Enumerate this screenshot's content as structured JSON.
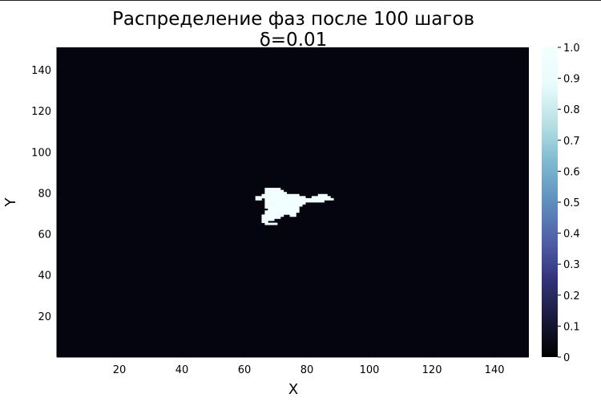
{
  "chart_data": {
    "type": "heatmap",
    "title": "Распределение фаз после 100 шагов",
    "subtitle": "δ=0.01",
    "xlabel": "X",
    "ylabel": "Y",
    "xlim": [
      0,
      151
    ],
    "ylim": [
      0,
      151
    ],
    "xticks": [
      20,
      40,
      60,
      80,
      100,
      120,
      140
    ],
    "yticks": [
      20,
      40,
      60,
      80,
      100,
      120,
      140
    ],
    "zlim": [
      0,
      1
    ],
    "zticks": [
      "0",
      "0.1",
      "0.2",
      "0.3",
      "0.4",
      "0.5",
      "0.6",
      "0.7",
      "0.8",
      "0.9",
      "1.0"
    ],
    "colormap": [
      "#000000",
      "#1a1a3b",
      "#33337a",
      "#4e5fa8",
      "#5e8fbd",
      "#7cb8cf",
      "#b6dfe3",
      "#e8fbfb",
      "#f2ffff"
    ],
    "background_value": 0,
    "grid": false,
    "cluster_value": 1,
    "cluster_cells": [
      [
        67,
        82
      ],
      [
        68,
        82
      ],
      [
        69,
        82
      ],
      [
        70,
        82
      ],
      [
        71,
        82
      ],
      [
        67,
        81
      ],
      [
        68,
        81
      ],
      [
        69,
        81
      ],
      [
        70,
        81
      ],
      [
        71,
        81
      ],
      [
        72,
        81
      ],
      [
        67,
        80
      ],
      [
        68,
        80
      ],
      [
        69,
        80
      ],
      [
        70,
        80
      ],
      [
        71,
        80
      ],
      [
        72,
        80
      ],
      [
        73,
        80
      ],
      [
        66,
        79
      ],
      [
        67,
        79
      ],
      [
        68,
        79
      ],
      [
        69,
        79
      ],
      [
        70,
        79
      ],
      [
        71,
        79
      ],
      [
        72,
        79
      ],
      [
        73,
        79
      ],
      [
        74,
        79
      ],
      [
        75,
        79
      ],
      [
        76,
        79
      ],
      [
        77,
        79
      ],
      [
        84,
        79
      ],
      [
        85,
        79
      ],
      [
        86,
        79
      ],
      [
        64,
        78
      ],
      [
        65,
        78
      ],
      [
        66,
        78
      ],
      [
        67,
        78
      ],
      [
        68,
        78
      ],
      [
        69,
        78
      ],
      [
        70,
        78
      ],
      [
        71,
        78
      ],
      [
        72,
        78
      ],
      [
        73,
        78
      ],
      [
        74,
        78
      ],
      [
        75,
        78
      ],
      [
        76,
        78
      ],
      [
        77,
        78
      ],
      [
        78,
        78
      ],
      [
        79,
        78
      ],
      [
        82,
        78
      ],
      [
        83,
        78
      ],
      [
        84,
        78
      ],
      [
        85,
        78
      ],
      [
        86,
        78
      ],
      [
        87,
        78
      ],
      [
        64,
        77
      ],
      [
        65,
        77
      ],
      [
        67,
        77
      ],
      [
        68,
        77
      ],
      [
        69,
        77
      ],
      [
        70,
        77
      ],
      [
        71,
        77
      ],
      [
        72,
        77
      ],
      [
        73,
        77
      ],
      [
        74,
        77
      ],
      [
        75,
        77
      ],
      [
        76,
        77
      ],
      [
        77,
        77
      ],
      [
        78,
        77
      ],
      [
        79,
        77
      ],
      [
        80,
        77
      ],
      [
        81,
        77
      ],
      [
        82,
        77
      ],
      [
        83,
        77
      ],
      [
        84,
        77
      ],
      [
        85,
        77
      ],
      [
        86,
        77
      ],
      [
        87,
        77
      ],
      [
        88,
        77
      ],
      [
        67,
        76
      ],
      [
        68,
        76
      ],
      [
        69,
        76
      ],
      [
        70,
        76
      ],
      [
        71,
        76
      ],
      [
        72,
        76
      ],
      [
        73,
        76
      ],
      [
        74,
        76
      ],
      [
        75,
        76
      ],
      [
        76,
        76
      ],
      [
        77,
        76
      ],
      [
        78,
        76
      ],
      [
        79,
        76
      ],
      [
        80,
        76
      ],
      [
        81,
        76
      ],
      [
        82,
        76
      ],
      [
        83,
        76
      ],
      [
        84,
        76
      ],
      [
        85,
        76
      ],
      [
        67,
        75
      ],
      [
        68,
        75
      ],
      [
        69,
        75
      ],
      [
        70,
        75
      ],
      [
        71,
        75
      ],
      [
        72,
        75
      ],
      [
        73,
        75
      ],
      [
        74,
        75
      ],
      [
        75,
        75
      ],
      [
        76,
        75
      ],
      [
        77,
        75
      ],
      [
        78,
        75
      ],
      [
        79,
        75
      ],
      [
        67,
        74
      ],
      [
        68,
        74
      ],
      [
        69,
        74
      ],
      [
        70,
        74
      ],
      [
        71,
        74
      ],
      [
        72,
        74
      ],
      [
        73,
        74
      ],
      [
        74,
        74
      ],
      [
        75,
        74
      ],
      [
        76,
        74
      ],
      [
        77,
        74
      ],
      [
        78,
        74
      ],
      [
        67,
        73
      ],
      [
        68,
        73
      ],
      [
        69,
        73
      ],
      [
        70,
        73
      ],
      [
        71,
        73
      ],
      [
        72,
        73
      ],
      [
        73,
        73
      ],
      [
        74,
        73
      ],
      [
        75,
        73
      ],
      [
        76,
        73
      ],
      [
        77,
        73
      ],
      [
        68,
        72
      ],
      [
        69,
        72
      ],
      [
        70,
        72
      ],
      [
        71,
        72
      ],
      [
        72,
        72
      ],
      [
        73,
        72
      ],
      [
        74,
        72
      ],
      [
        75,
        72
      ],
      [
        76,
        72
      ],
      [
        77,
        72
      ],
      [
        67,
        71
      ],
      [
        68,
        71
      ],
      [
        69,
        71
      ],
      [
        70,
        71
      ],
      [
        71,
        71
      ],
      [
        72,
        71
      ],
      [
        73,
        71
      ],
      [
        74,
        71
      ],
      [
        75,
        71
      ],
      [
        76,
        71
      ],
      [
        77,
        71
      ],
      [
        67,
        70
      ],
      [
        68,
        70
      ],
      [
        69,
        70
      ],
      [
        70,
        70
      ],
      [
        71,
        70
      ],
      [
        72,
        70
      ],
      [
        73,
        70
      ],
      [
        74,
        70
      ],
      [
        75,
        70
      ],
      [
        76,
        70
      ],
      [
        66,
        69
      ],
      [
        67,
        69
      ],
      [
        68,
        69
      ],
      [
        69,
        69
      ],
      [
        70,
        69
      ],
      [
        71,
        69
      ],
      [
        72,
        69
      ],
      [
        75,
        69
      ],
      [
        76,
        69
      ],
      [
        66,
        68
      ],
      [
        67,
        68
      ],
      [
        68,
        68
      ],
      [
        69,
        68
      ],
      [
        70,
        68
      ],
      [
        71,
        68
      ],
      [
        66,
        67
      ],
      [
        67,
        67
      ],
      [
        68,
        67
      ],
      [
        69,
        67
      ],
      [
        66,
        66
      ],
      [
        67,
        66
      ],
      [
        67,
        65
      ],
      [
        68,
        65
      ],
      [
        69,
        65
      ],
      [
        70,
        65
      ]
    ]
  }
}
